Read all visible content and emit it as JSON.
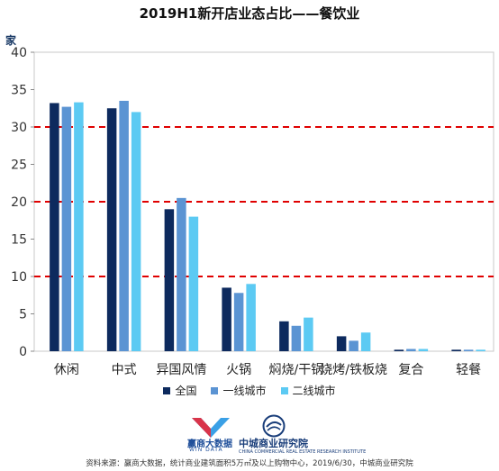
{
  "chart_data": {
    "type": "bar",
    "title": "2019H1新开店业态占比——餐饮业",
    "ylabel": "家",
    "ylim": [
      0,
      40
    ],
    "yticks": [
      0,
      5,
      10,
      15,
      20,
      25,
      30,
      35,
      40
    ],
    "reference_lines": [
      10,
      20,
      30
    ],
    "reference_line_color": "#e00000",
    "categories": [
      "休闲",
      "中式",
      "异国风情",
      "火锅",
      "焖烧/干锅",
      "烧烤/铁板烧",
      "复合",
      "轻餐"
    ],
    "series": [
      {
        "name": "全国",
        "color": "#0d2a5e",
        "values": [
          33.2,
          32.5,
          19.0,
          8.5,
          4.0,
          2.0,
          0.2,
          0.2
        ]
      },
      {
        "name": "一线城市",
        "color": "#5b94d3",
        "values": [
          32.7,
          33.5,
          20.5,
          7.8,
          3.4,
          1.4,
          0.3,
          0.2
        ]
      },
      {
        "name": "二线城市",
        "color": "#5ccaf3",
        "values": [
          33.3,
          32.0,
          18.0,
          9.0,
          4.5,
          2.5,
          0.3,
          0.2
        ]
      }
    ],
    "legend_position": "bottom",
    "grid": false
  },
  "logos": {
    "win_name": "赢商大数据",
    "win_sub": "WIN DATA",
    "zc_name": "中城商业研究院",
    "zc_sub": "CHINA COMMERCIAL REAL ESTATE RESEARCH INSTITUTE"
  },
  "source": "资料来源：赢商大数据，统计商业建筑面积5万㎡及以上购物中心，2019/6/30，中城商业研究院"
}
